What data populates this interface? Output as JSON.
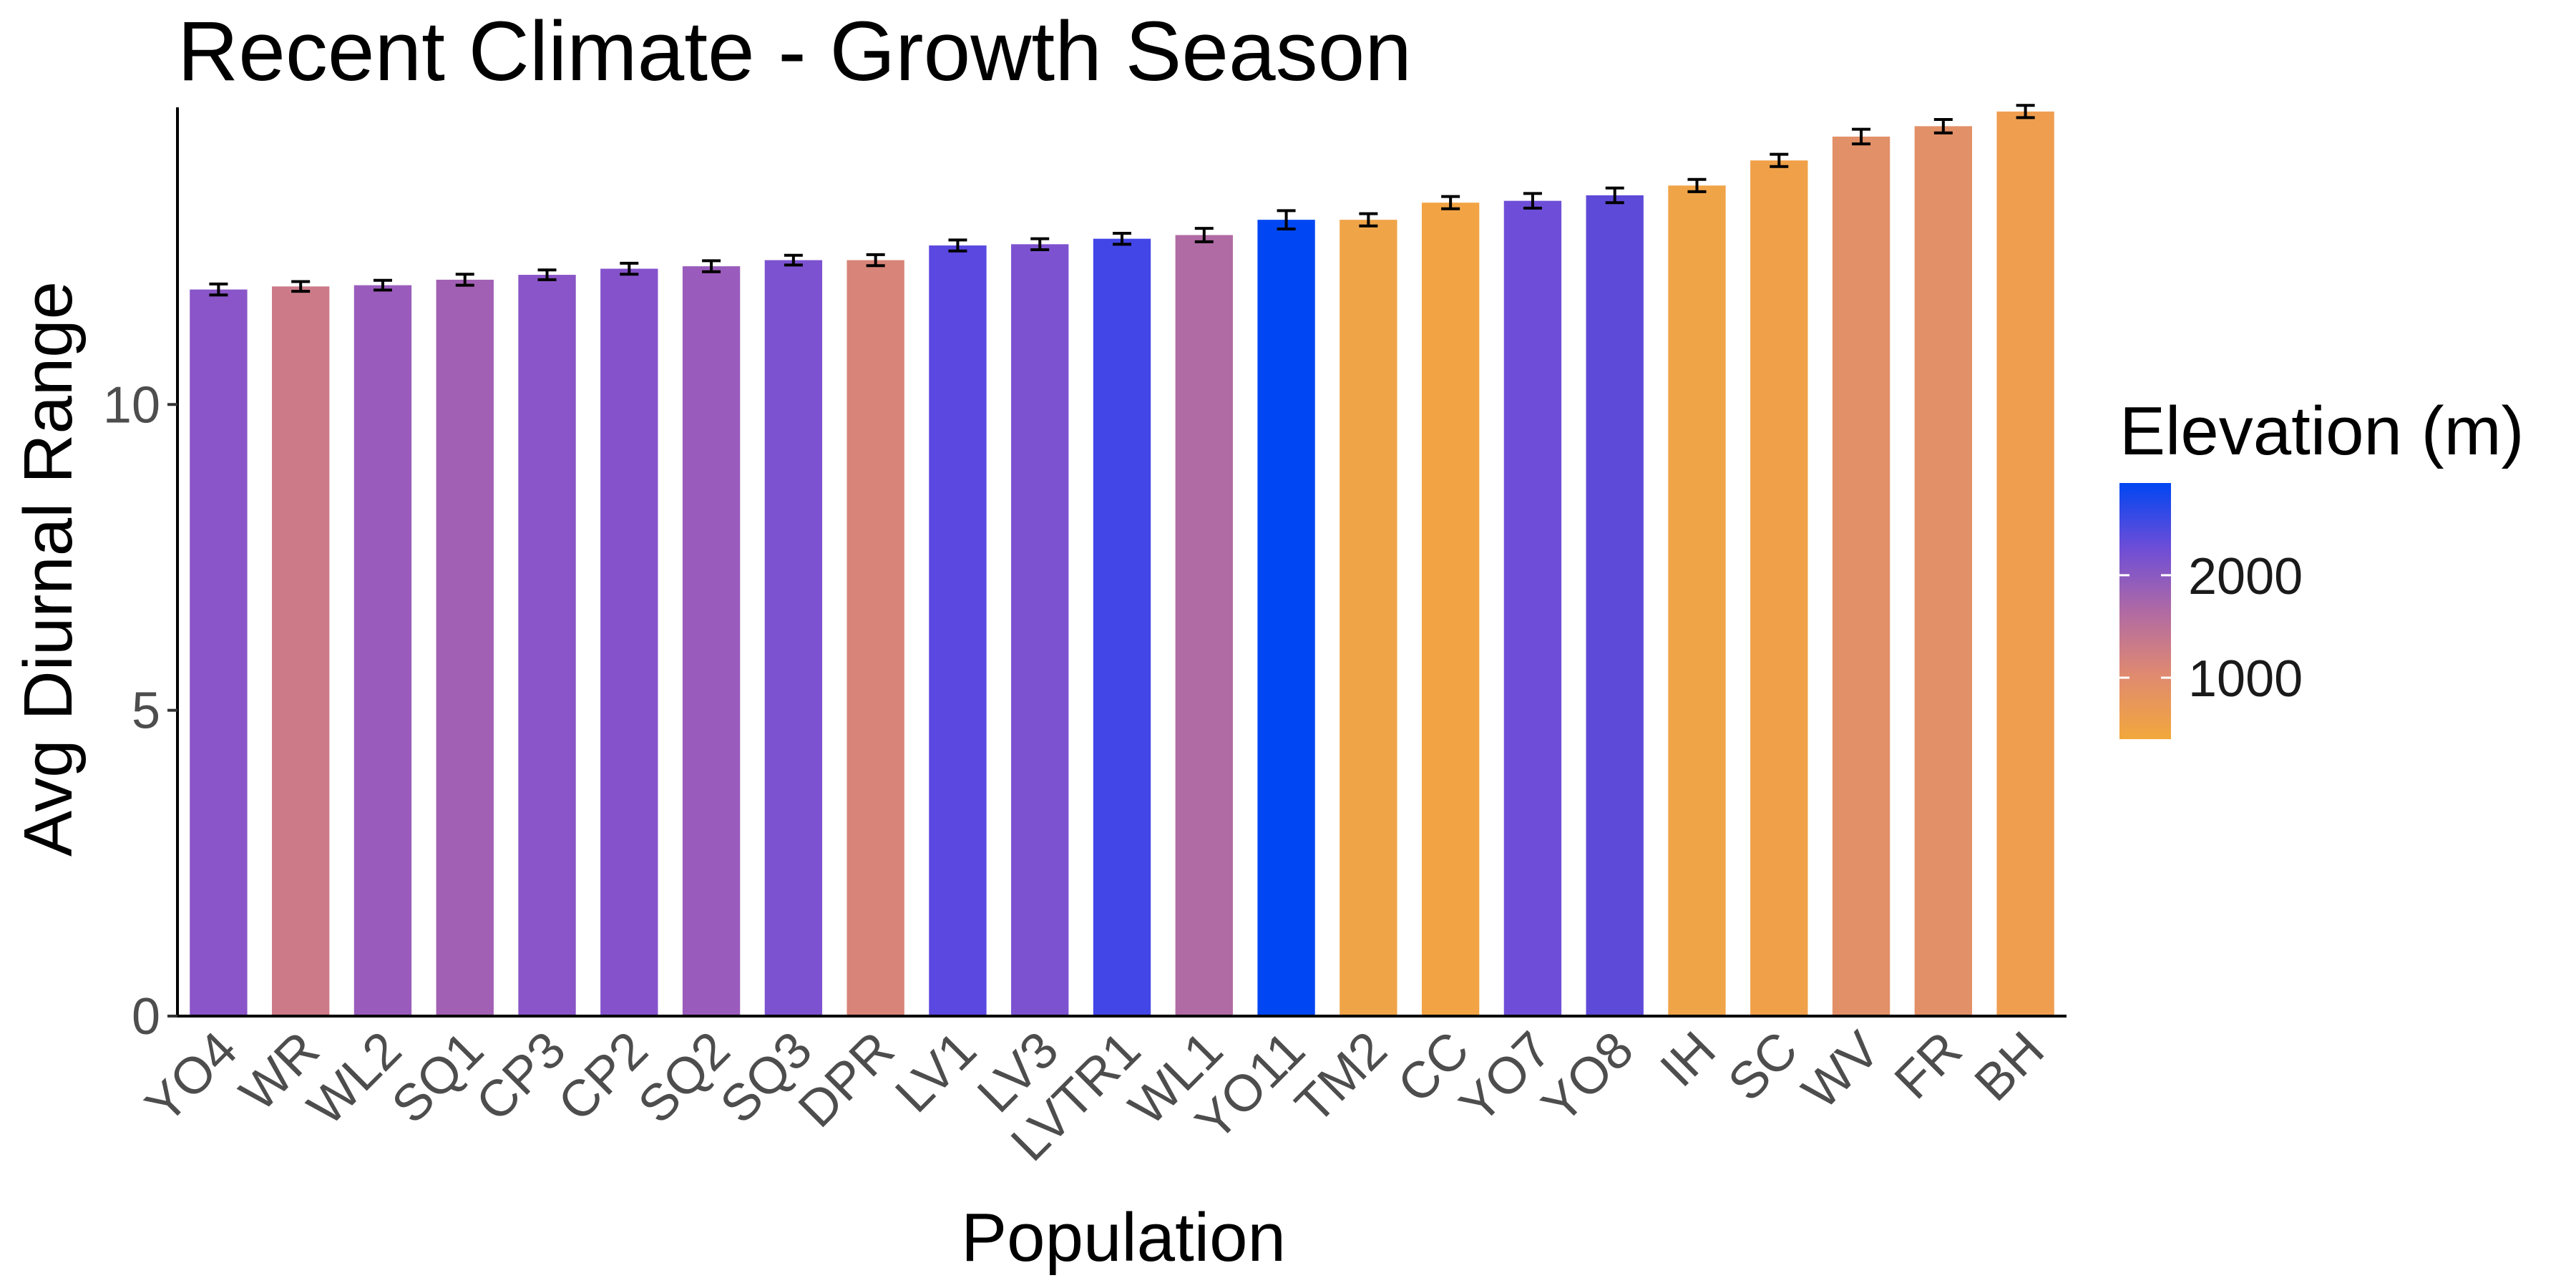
{
  "chart_data": {
    "type": "bar",
    "title": "Recent Climate - Growth Season",
    "xlabel": "Population",
    "ylabel": "Avg Diurnal Range",
    "ylim": [
      0,
      14.8
    ],
    "yticks": [
      0,
      5,
      10
    ],
    "grid": false,
    "categories": [
      "YO4",
      "WR",
      "WL2",
      "SQ1",
      "CP3",
      "CP2",
      "SQ2",
      "SQ3",
      "DPR",
      "LV1",
      "LV3",
      "LVTR1",
      "WL1",
      "YO11",
      "TM2",
      "CC",
      "YO7",
      "YO8",
      "IH",
      "SC",
      "WV",
      "FR",
      "BH"
    ],
    "values": [
      11.88,
      11.93,
      11.95,
      12.04,
      12.12,
      12.22,
      12.26,
      12.36,
      12.36,
      12.6,
      12.62,
      12.71,
      12.77,
      13.02,
      13.02,
      13.3,
      13.33,
      13.42,
      13.58,
      13.99,
      14.38,
      14.55,
      14.79
    ],
    "errors": [
      0.09,
      0.08,
      0.08,
      0.09,
      0.08,
      0.09,
      0.09,
      0.08,
      0.09,
      0.09,
      0.09,
      0.09,
      0.11,
      0.15,
      0.1,
      0.1,
      0.12,
      0.12,
      0.1,
      0.1,
      0.12,
      0.11,
      0.1
    ],
    "colors": [
      "#8a55c8",
      "#cc7a88",
      "#9a5cbc",
      "#a260b4",
      "#8a55c8",
      "#8552cc",
      "#9a5cbc",
      "#7c52d0",
      "#d88478",
      "#5a48e0",
      "#7c52d0",
      "#4346e6",
      "#b06aa4",
      "#0046f2",
      "#f0a448",
      "#f2a444",
      "#6e4ed8",
      "#5e4ad8",
      "#f0a448",
      "#f0a048",
      "#e29068",
      "#e29068",
      "#ef9e50"
    ],
    "legend": {
      "title": "Elevation (m)",
      "position": "right",
      "ticks": [
        "2000",
        "1000"
      ],
      "tick_values": [
        2000,
        1000
      ],
      "range": [
        400,
        2900
      ],
      "gradient_colors": [
        "#f2a83c",
        "#e08a70",
        "#b06aa4",
        "#6c4dd8",
        "#0046f2"
      ]
    }
  }
}
